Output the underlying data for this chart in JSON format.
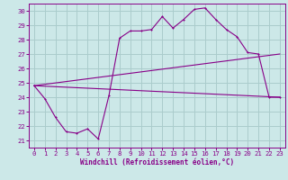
{
  "xlabel": "Windchill (Refroidissement éolien,°C)",
  "xlim": [
    -0.5,
    23.5
  ],
  "ylim": [
    20.5,
    30.5
  ],
  "yticks": [
    21,
    22,
    23,
    24,
    25,
    26,
    27,
    28,
    29,
    30
  ],
  "xticks": [
    0,
    1,
    2,
    3,
    4,
    5,
    6,
    7,
    8,
    9,
    10,
    11,
    12,
    13,
    14,
    15,
    16,
    17,
    18,
    19,
    20,
    21,
    22,
    23
  ],
  "bg_color": "#cce8e8",
  "grid_color": "#aacccc",
  "line_color": "#880088",
  "series1_x": [
    0,
    1,
    2,
    3,
    4,
    5,
    6,
    7,
    8,
    9,
    10,
    11,
    12,
    13,
    14,
    15,
    16,
    17,
    18,
    19,
    20,
    21,
    22,
    23
  ],
  "series1_y": [
    24.8,
    23.9,
    22.6,
    21.6,
    21.5,
    21.8,
    21.1,
    24.1,
    28.1,
    28.6,
    28.6,
    28.7,
    29.6,
    28.8,
    29.4,
    30.1,
    30.2,
    29.4,
    28.7,
    28.2,
    27.1,
    27.0,
    24.0,
    24.0
  ],
  "series2_x": [
    0,
    23
  ],
  "series2_y": [
    24.8,
    24.0
  ],
  "series3_x": [
    0,
    23
  ],
  "series3_y": [
    24.8,
    27.0
  ]
}
